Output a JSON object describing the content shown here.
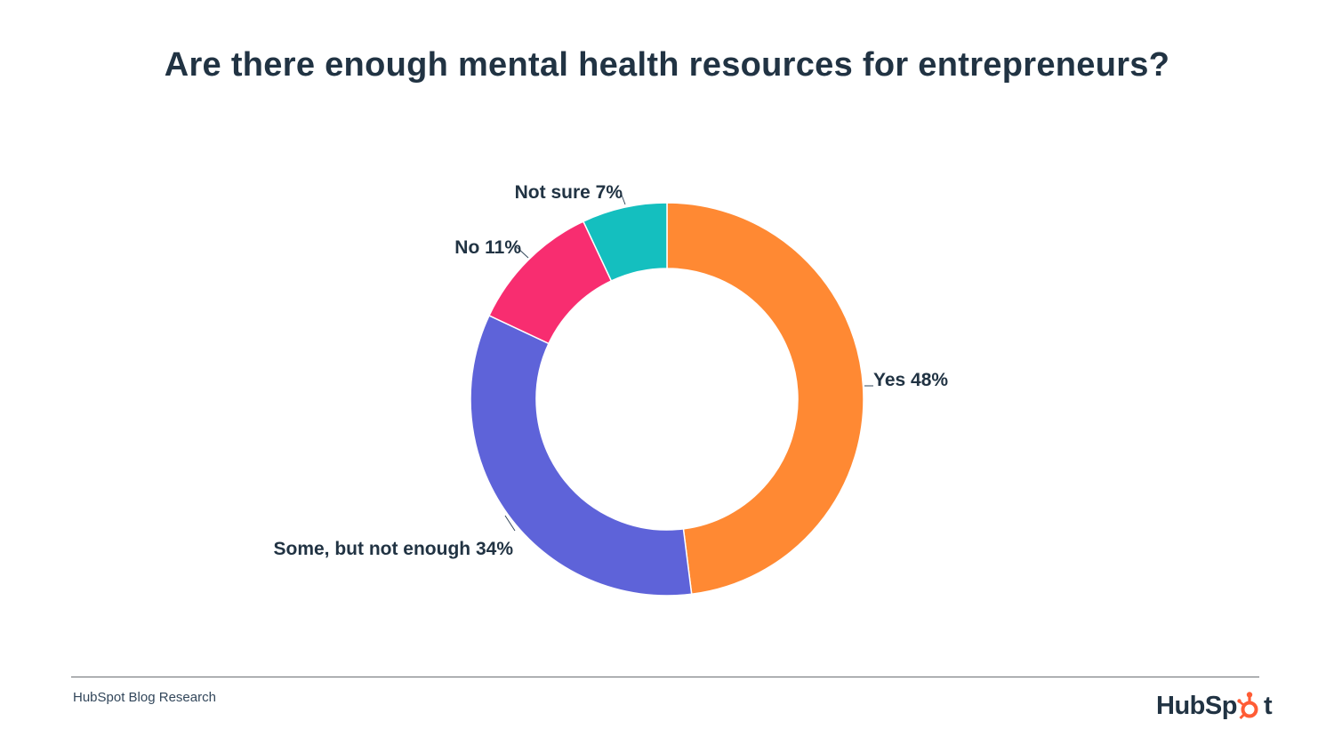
{
  "chart_data": {
    "type": "pie",
    "style": "donut",
    "title": "Are there enough mental health resources for entrepreneurs?",
    "slices": [
      {
        "label": "Yes",
        "value": 48,
        "display": "Yes 48%",
        "color": "#FF8933"
      },
      {
        "label": "Some, but not enough",
        "value": 34,
        "display": "Some, but not enough 34%",
        "color": "#5E63D9"
      },
      {
        "label": "No",
        "value": 11,
        "display": "No 11%",
        "color": "#F82D70"
      },
      {
        "label": "Not sure",
        "value": 7,
        "display": "Not sure 7%",
        "color": "#14BFBF"
      }
    ],
    "start_angle": "top",
    "direction": "clockwise"
  },
  "footer": {
    "source": "HubSpot Blog Research",
    "brand_left": "HubSp",
    "brand_right": "t"
  },
  "colors": {
    "text": "#213343",
    "brand_accent": "#FF5C35"
  }
}
